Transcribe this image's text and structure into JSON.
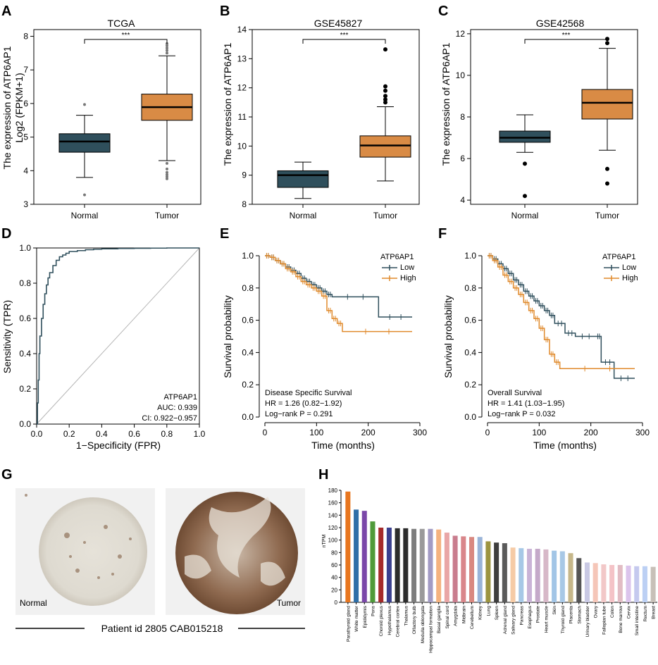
{
  "colors": {
    "normal": "#2f4f5c",
    "tumor": "#d98b45",
    "low": "#2f4f5c",
    "high": "#e08a2c",
    "roc": "#2f4f5c",
    "diag": "#b5b5b5"
  },
  "panels": {
    "A": {
      "letter": "A"
    },
    "B": {
      "letter": "B"
    },
    "C": {
      "letter": "C"
    },
    "D": {
      "letter": "D"
    },
    "E": {
      "letter": "E"
    },
    "F": {
      "letter": "F"
    },
    "G": {
      "letter": "G"
    },
    "H": {
      "letter": "H"
    }
  },
  "sig": "***",
  "chart_data": [
    {
      "id": "A",
      "type": "box",
      "title": "TCGA",
      "ylabel": "The expression of ATP6AP1",
      "ylabel2": "Log2 (FPKM+1)",
      "ylim": [
        3,
        8.2
      ],
      "yticks": [
        3,
        4,
        5,
        6,
        7,
        8
      ],
      "categories": [
        "Normal",
        "Tumor"
      ],
      "boxes": [
        {
          "min": 3.8,
          "q1": 4.55,
          "median": 4.87,
          "q3": 5.1,
          "max": 5.65,
          "outliers": [
            5.97,
            3.28
          ]
        },
        {
          "min": 4.3,
          "q1": 5.5,
          "median": 5.89,
          "q3": 6.28,
          "max": 7.42,
          "outliers": [
            7.5,
            7.58,
            7.65,
            7.72,
            7.78,
            4.22,
            4.05,
            3.95,
            3.88,
            3.82,
            3.76
          ]
        }
      ]
    },
    {
      "id": "B",
      "type": "box",
      "title": "GSE45827",
      "ylabel": "The expression of ATP6AP1",
      "ylim": [
        8,
        14
      ],
      "yticks": [
        8,
        9,
        10,
        11,
        12,
        13,
        14
      ],
      "categories": [
        "Normal",
        "Tumor"
      ],
      "boxes": [
        {
          "min": 8.2,
          "q1": 8.58,
          "median": 9.0,
          "q3": 9.15,
          "max": 9.45,
          "outliers": []
        },
        {
          "min": 8.8,
          "q1": 9.62,
          "median": 10.02,
          "q3": 10.35,
          "max": 11.35,
          "outliers": [
            11.5,
            11.6,
            11.72,
            11.9,
            12.05,
            13.32
          ]
        }
      ]
    },
    {
      "id": "C",
      "type": "box",
      "title": "GSE42568",
      "ylabel": "The expression of ATP6AP1",
      "ylim": [
        3.8,
        12.2
      ],
      "yticks": [
        4,
        6,
        8,
        10,
        12
      ],
      "categories": [
        "Normal",
        "Tumor"
      ],
      "boxes": [
        {
          "min": 6.3,
          "q1": 6.78,
          "median": 7.0,
          "q3": 7.32,
          "max": 8.1,
          "outliers": [
            5.75,
            4.2
          ]
        },
        {
          "min": 6.4,
          "q1": 7.9,
          "median": 8.68,
          "q3": 9.32,
          "max": 11.3,
          "outliers": [
            11.55,
            11.75,
            5.5,
            4.8
          ]
        }
      ]
    },
    {
      "id": "D",
      "type": "line",
      "subtype": "roc",
      "xlabel": "1−Specificity (FPR)",
      "ylabel": "Sensitivity (TPR)",
      "xlim": [
        0,
        1
      ],
      "ylim": [
        0,
        1
      ],
      "xticks": [
        "0.0",
        "0.2",
        "0.4",
        "0.6",
        "0.8",
        "1.0"
      ],
      "yticks": [
        "0.0",
        "0.2",
        "0.4",
        "0.6",
        "0.8",
        "1.0"
      ],
      "label": "ATP6AP1",
      "auc": "AUC: 0.939",
      "ci": "CI: 0.922−0.957",
      "x": [
        0,
        0.005,
        0.01,
        0.015,
        0.02,
        0.03,
        0.04,
        0.05,
        0.06,
        0.07,
        0.08,
        0.1,
        0.12,
        0.14,
        0.16,
        0.18,
        0.2,
        0.25,
        0.3,
        0.35,
        0.4,
        0.5,
        0.6,
        0.7,
        0.8,
        0.9,
        1.0
      ],
      "y": [
        0,
        0.12,
        0.25,
        0.4,
        0.5,
        0.6,
        0.68,
        0.74,
        0.79,
        0.83,
        0.86,
        0.9,
        0.93,
        0.95,
        0.96,
        0.97,
        0.98,
        0.985,
        0.99,
        0.993,
        0.995,
        0.997,
        0.998,
        0.999,
        1.0,
        1.0,
        1.0
      ]
    },
    {
      "id": "E",
      "type": "line",
      "subtype": "survival",
      "xlabel": "Time (months)",
      "ylabel": "Survival probability",
      "xlim": [
        0,
        300
      ],
      "ylim": [
        0,
        1
      ],
      "xticks": [
        "0",
        "100",
        "200",
        "300"
      ],
      "yticks": [
        "0.0",
        "0.2",
        "0.4",
        "0.6",
        "0.8",
        "1.0"
      ],
      "legend_title": "ATP6AP1",
      "series": [
        {
          "name": "Low",
          "x": [
            0,
            10,
            20,
            30,
            40,
            50,
            60,
            70,
            80,
            90,
            100,
            110,
            120,
            130,
            220,
            285
          ],
          "y": [
            1.0,
            0.99,
            0.97,
            0.95,
            0.93,
            0.91,
            0.89,
            0.86,
            0.84,
            0.82,
            0.8,
            0.78,
            0.76,
            0.745,
            0.62,
            0.62
          ]
        },
        {
          "name": "High",
          "x": [
            0,
            10,
            20,
            30,
            40,
            50,
            60,
            70,
            80,
            90,
            100,
            110,
            120,
            130,
            140,
            150,
            285
          ],
          "y": [
            1.0,
            0.99,
            0.97,
            0.95,
            0.92,
            0.9,
            0.87,
            0.84,
            0.82,
            0.8,
            0.78,
            0.75,
            0.66,
            0.61,
            0.58,
            0.53,
            0.53
          ]
        }
      ],
      "annotations": [
        "Disease Specific Survival",
        "HR = 1.26 (0.82−1.92)",
        "Log−rank P = 0.291"
      ]
    },
    {
      "id": "F",
      "type": "line",
      "subtype": "survival",
      "xlabel": "Time (months)",
      "ylabel": "Survival probability",
      "xlim": [
        0,
        300
      ],
      "ylim": [
        0,
        1
      ],
      "xticks": [
        "0",
        "100",
        "200",
        "300"
      ],
      "yticks": [
        "0.0",
        "0.2",
        "0.4",
        "0.6",
        "0.8",
        "1.0"
      ],
      "legend_title": "ATP6AP1",
      "series": [
        {
          "name": "Low",
          "x": [
            0,
            10,
            20,
            30,
            40,
            50,
            60,
            70,
            80,
            90,
            100,
            110,
            120,
            130,
            150,
            170,
            210,
            220,
            245,
            285
          ],
          "y": [
            1.0,
            0.98,
            0.95,
            0.92,
            0.89,
            0.85,
            0.82,
            0.78,
            0.75,
            0.72,
            0.69,
            0.66,
            0.63,
            0.58,
            0.52,
            0.5,
            0.5,
            0.34,
            0.24,
            0.24
          ]
        },
        {
          "name": "High",
          "x": [
            0,
            10,
            20,
            30,
            40,
            50,
            60,
            70,
            80,
            90,
            100,
            110,
            120,
            130,
            140,
            285
          ],
          "y": [
            1.0,
            0.97,
            0.93,
            0.88,
            0.84,
            0.8,
            0.76,
            0.71,
            0.66,
            0.61,
            0.55,
            0.48,
            0.39,
            0.34,
            0.3,
            0.3
          ]
        }
      ],
      "annotations": [
        "Overall Survival",
        "HR = 1.41 (1.03−1.95)",
        "Log−rank P = 0.032"
      ]
    },
    {
      "id": "H",
      "type": "bar",
      "ylabel": "nTPM",
      "ylim": [
        0,
        180
      ],
      "yticks": [
        0,
        20,
        40,
        60,
        80,
        100,
        120,
        140,
        160,
        180
      ],
      "categories": [
        "Parathyroid gland",
        "White matter",
        "Epididymis",
        "Pons",
        "Choroid plexus",
        "Hypothalamus",
        "Cerebral cortex",
        "Thalamus",
        "Olfactory bulb",
        "Medulla oblongata",
        "Hippocampal formation",
        "Basal ganglia",
        "Spinal cord",
        "Amygdala",
        "Midbrain",
        "Cerebellum",
        "Kidney",
        "Lung",
        "Spleen",
        "Adrenal gland",
        "Salivary gland",
        "Pancreas",
        "Esophagus",
        "Prostate",
        "Heart muscle",
        "Skin",
        "Thyroid gland",
        "Placenta",
        "Stomach",
        "Urinary bladder",
        "Ovary",
        "Fallopian tube",
        "Colon",
        "Bone marrow",
        "Cervix",
        "Small intestine",
        "Rectum",
        "Breast"
      ],
      "values": [
        178,
        149,
        147,
        130,
        120,
        120,
        119,
        119,
        118,
        118,
        118,
        117,
        112,
        107,
        106,
        105,
        105,
        98,
        96,
        95,
        88,
        87,
        86,
        86,
        85,
        83,
        82,
        79,
        71,
        64,
        63,
        61,
        60,
        60,
        59,
        58,
        58,
        57
      ],
      "colors": [
        "#e8761f",
        "#2f6fa8",
        "#7a47a8",
        "#4f9a3a",
        "#a52a2a",
        "#3a3f8f",
        "#2c2c2c",
        "#2c2c2c",
        "#7d7d7d",
        "#9a9a9a",
        "#a29bc4",
        "#f4b27f",
        "#e9a6a6",
        "#c97d8e",
        "#d9868a",
        "#d98880",
        "#9ab4d8",
        "#9c9440",
        "#3d3d3d",
        "#5a5a5a",
        "#f6cba6",
        "#a7c8e6",
        "#c9b3d6",
        "#c4a9c9",
        "#d7b8c8",
        "#a2c5e6",
        "#a8c8e6",
        "#c6b78a",
        "#555555",
        "#c9c9e4",
        "#f5c6b8",
        "#f2c8c8",
        "#f4c3c7",
        "#e2bcc4",
        "#dbc4ec",
        "#c5c9ee",
        "#bcd0f4",
        "#c8c0b8"
      ]
    }
  ],
  "tissue": {
    "normal_label": "Normal",
    "tumor_label": "Tumor",
    "caption": "Patient id 2805   CAB015218"
  }
}
